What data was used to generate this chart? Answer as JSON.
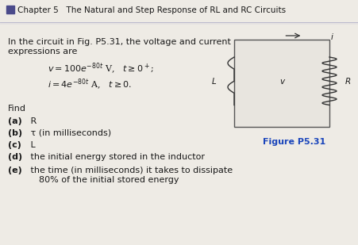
{
  "header_square_color": "#4a4a8a",
  "header_text": "Chapter 5   The Natural and Step Response of RL and RC Circuits",
  "header_fontsize": 7.5,
  "body_fontsize": 8.0,
  "small_fontsize": 7.5,
  "find_label": "Find",
  "parts_bold": [
    "(a)",
    "(b)",
    "(c)",
    "(d)",
    "(e)"
  ],
  "parts_rest": [
    " R",
    " τ (in milliseconds)",
    " L",
    " the initial energy stored in the inductor",
    " the time (in milliseconds) it takes to dissipate\n    80% of the initial stored energy"
  ],
  "figure_label": "Figure P5.31",
  "bg_color": "#eeebe5",
  "line_color": "#9090a8",
  "text_color": "#1a1a1a",
  "blue_color": "#1a45bb",
  "circuit_color": "#e8e5df"
}
